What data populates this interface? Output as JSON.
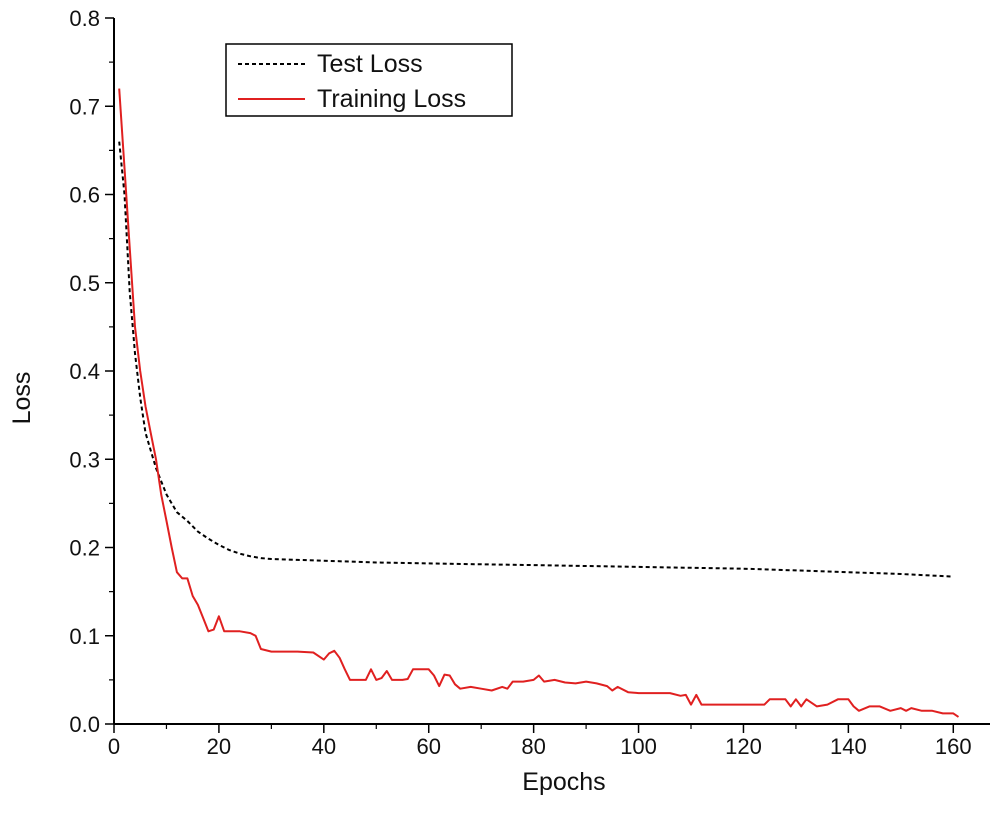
{
  "chart_data": {
    "type": "line",
    "title": "",
    "xlabel": "Epochs",
    "ylabel": "Loss",
    "xlim": [
      0,
      167
    ],
    "ylim": [
      0,
      0.8
    ],
    "xticks": [
      0,
      20,
      40,
      60,
      80,
      100,
      120,
      140,
      160
    ],
    "yticks": [
      0.0,
      0.1,
      0.2,
      0.3,
      0.4,
      0.5,
      0.6,
      0.7,
      0.8
    ],
    "xtick_labels": [
      "0",
      "20",
      "40",
      "60",
      "80",
      "100",
      "120",
      "140",
      "160"
    ],
    "ytick_labels": [
      "0.0",
      "0.1",
      "0.2",
      "0.3",
      "0.4",
      "0.5",
      "0.6",
      "0.7",
      "0.8"
    ],
    "grid": false,
    "legend_position": "top-left",
    "series": [
      {
        "name": "Test Loss",
        "style": "dashed",
        "color": "#000000",
        "x": [
          1,
          2,
          3,
          4,
          5,
          6,
          7,
          8,
          9,
          10,
          11,
          12,
          14,
          16,
          18,
          20,
          22,
          24,
          26,
          28,
          30,
          35,
          40,
          45,
          50,
          60,
          70,
          80,
          90,
          100,
          110,
          120,
          130,
          140,
          150,
          160
        ],
        "y": [
          0.66,
          0.6,
          0.49,
          0.42,
          0.37,
          0.33,
          0.31,
          0.29,
          0.275,
          0.26,
          0.25,
          0.24,
          0.23,
          0.218,
          0.21,
          0.203,
          0.197,
          0.193,
          0.19,
          0.188,
          0.187,
          0.186,
          0.185,
          0.184,
          0.183,
          0.182,
          0.181,
          0.18,
          0.179,
          0.178,
          0.177,
          0.176,
          0.174,
          0.172,
          0.17,
          0.167
        ]
      },
      {
        "name": "Training Loss",
        "style": "solid",
        "color": "#e02020",
        "x": [
          1,
          2,
          3,
          4,
          5,
          6,
          7,
          8,
          9,
          10,
          11,
          12,
          13,
          14,
          15,
          16,
          17,
          18,
          19,
          20,
          21,
          22,
          24,
          26,
          27,
          28,
          30,
          32,
          35,
          38,
          40,
          41,
          42,
          43,
          44,
          45,
          48,
          49,
          50,
          51,
          52,
          53,
          55,
          56,
          57,
          58,
          59,
          60,
          61,
          62,
          63,
          64,
          65,
          66,
          68,
          70,
          72,
          74,
          75,
          76,
          78,
          80,
          81,
          82,
          84,
          86,
          88,
          90,
          92,
          94,
          95,
          96,
          98,
          100,
          104,
          106,
          108,
          109,
          110,
          111,
          112,
          115,
          118,
          120,
          122,
          124,
          125,
          126,
          128,
          129,
          130,
          131,
          132,
          134,
          136,
          138,
          140,
          141,
          142,
          144,
          146,
          148,
          150,
          151,
          152,
          154,
          156,
          158,
          160,
          161
        ],
        "y": [
          0.72,
          0.63,
          0.54,
          0.45,
          0.4,
          0.36,
          0.33,
          0.3,
          0.26,
          0.23,
          0.2,
          0.172,
          0.165,
          0.165,
          0.145,
          0.135,
          0.12,
          0.105,
          0.107,
          0.122,
          0.105,
          0.105,
          0.105,
          0.103,
          0.1,
          0.085,
          0.082,
          0.082,
          0.082,
          0.081,
          0.073,
          0.08,
          0.083,
          0.075,
          0.062,
          0.05,
          0.05,
          0.062,
          0.05,
          0.052,
          0.06,
          0.05,
          0.05,
          0.051,
          0.062,
          0.062,
          0.062,
          0.062,
          0.055,
          0.043,
          0.056,
          0.055,
          0.045,
          0.04,
          0.042,
          0.04,
          0.038,
          0.042,
          0.04,
          0.048,
          0.048,
          0.05,
          0.055,
          0.048,
          0.05,
          0.047,
          0.046,
          0.048,
          0.046,
          0.043,
          0.038,
          0.042,
          0.036,
          0.035,
          0.035,
          0.035,
          0.032,
          0.033,
          0.022,
          0.033,
          0.022,
          0.022,
          0.022,
          0.022,
          0.022,
          0.022,
          0.028,
          0.028,
          0.028,
          0.02,
          0.028,
          0.02,
          0.028,
          0.02,
          0.022,
          0.028,
          0.028,
          0.02,
          0.015,
          0.02,
          0.02,
          0.015,
          0.018,
          0.015,
          0.018,
          0.015,
          0.015,
          0.012,
          0.012,
          0.008
        ]
      }
    ]
  }
}
